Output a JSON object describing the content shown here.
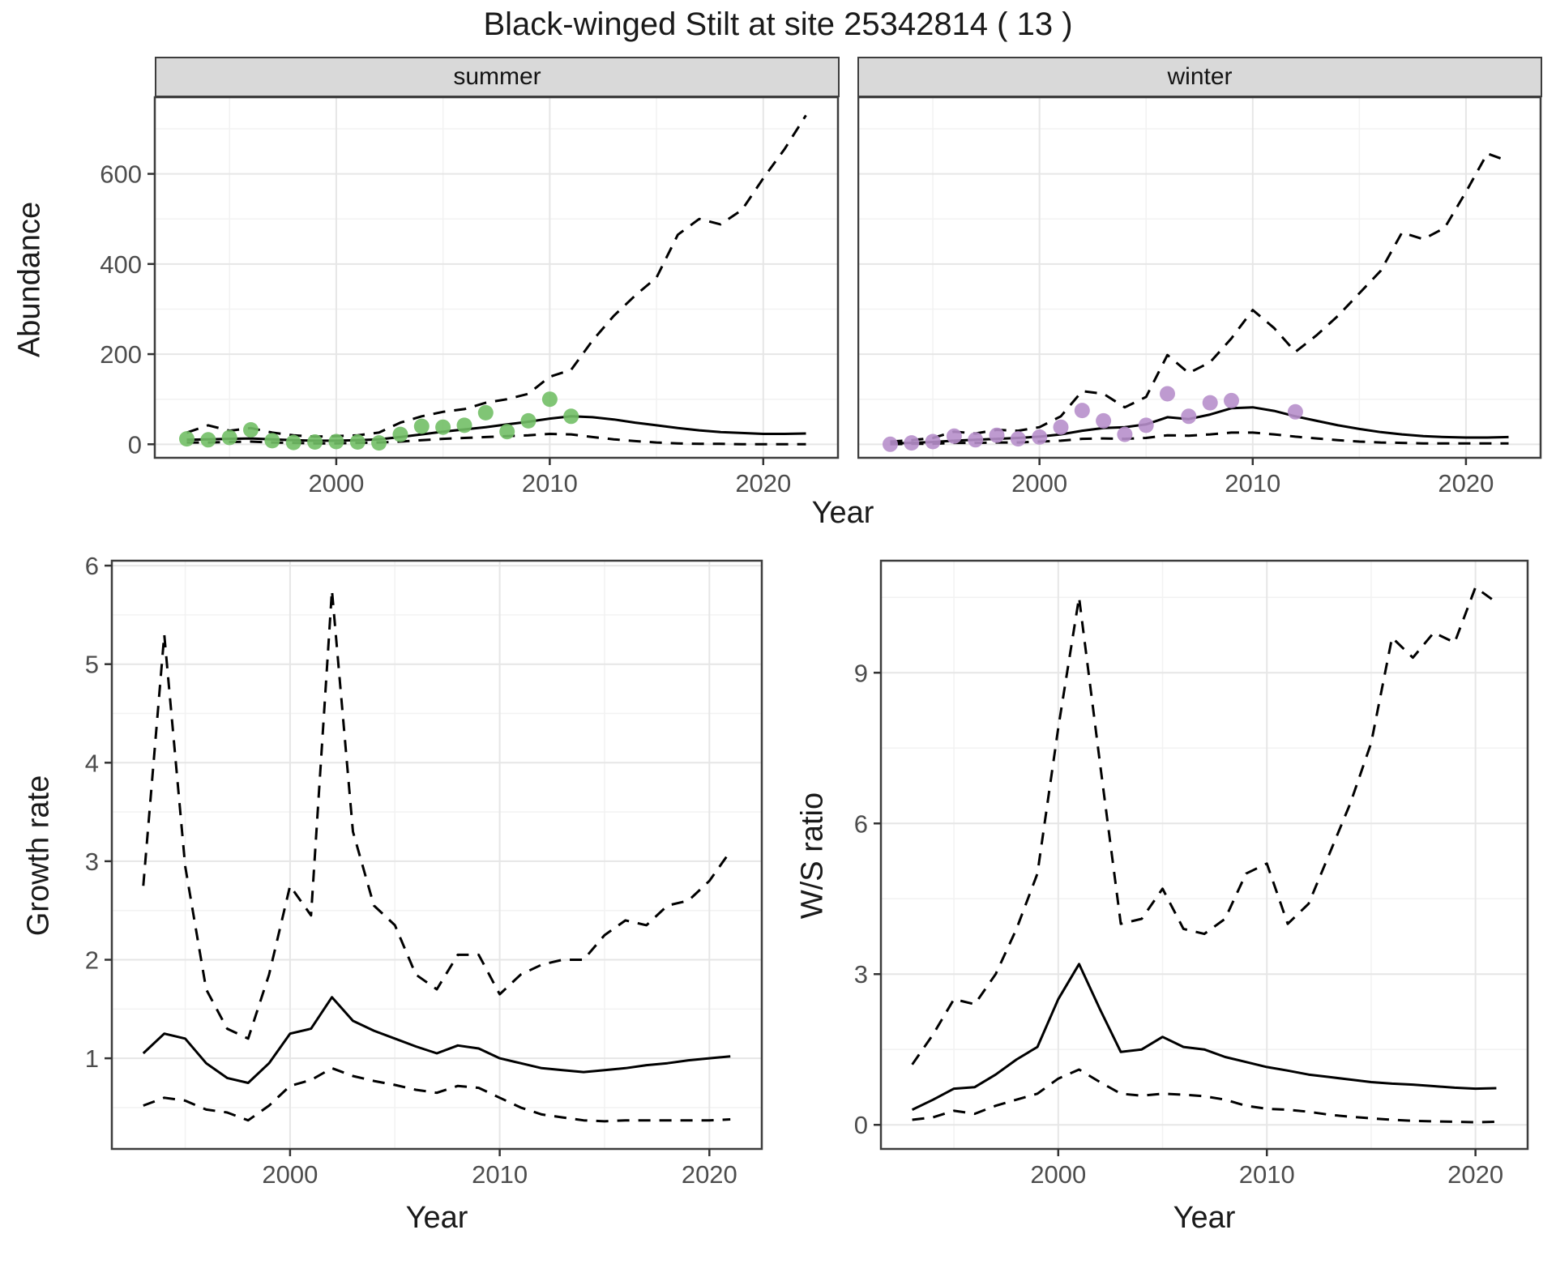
{
  "title": "Black-winged Stilt at site 25342814 ( 13 )",
  "colors": {
    "summer_points": "#72bf66",
    "winter_points": "#b78fcb",
    "fit_line": "#000000",
    "strip_bg": "#d9d9d9",
    "grid_major": "#e6e6e6",
    "tick_text": "#4d4d4d"
  },
  "chart_data": [
    {
      "id": "abundance_summer",
      "type": "scatter+line",
      "facet_label": "summer",
      "xlabel": "Year",
      "ylabel": "Abundance",
      "xlim": [
        1991.5,
        2023.5
      ],
      "ylim": [
        -30,
        770
      ],
      "xticks": [
        2000,
        2010,
        2020
      ],
      "yticks": [
        0,
        200,
        400,
        600
      ],
      "x": [
        1993,
        1994,
        1995,
        1996,
        1997,
        1998,
        1999,
        2000,
        2001,
        2002,
        2003,
        2004,
        2005,
        2006,
        2007,
        2008,
        2009,
        2010,
        2011,
        2012,
        2013,
        2014,
        2015,
        2016,
        2017,
        2018,
        2019,
        2020,
        2021,
        2022
      ],
      "series": [
        {
          "name": "upper-ci",
          "kind": "line",
          "dash": true,
          "color": "#000000",
          "y": [
            26,
            42,
            30,
            36,
            26,
            20,
            17,
            18,
            20,
            26,
            48,
            62,
            72,
            78,
            92,
            100,
            112,
            150,
            165,
            230,
            285,
            330,
            370,
            465,
            500,
            488,
            520,
            590,
            655,
            730
          ]
        },
        {
          "name": "lower-ci",
          "kind": "line",
          "dash": true,
          "color": "#000000",
          "y": [
            4,
            4,
            5,
            6,
            4,
            3,
            2,
            2,
            3,
            4,
            6,
            9,
            12,
            14,
            16,
            18,
            20,
            23,
            22,
            16,
            11,
            7,
            4,
            2,
            1,
            1,
            0,
            0,
            0,
            0
          ]
        },
        {
          "name": "fit",
          "kind": "line",
          "dash": false,
          "color": "#000000",
          "y": [
            10,
            11,
            12,
            13,
            11,
            9,
            8,
            8,
            9,
            11,
            16,
            22,
            28,
            33,
            38,
            44,
            50,
            57,
            62,
            60,
            55,
            48,
            42,
            36,
            31,
            27,
            25,
            23,
            23,
            24
          ]
        },
        {
          "name": "observed-counts",
          "kind": "points",
          "color": "#72bf66",
          "x": [
            1993,
            1994,
            1995,
            1996,
            1997,
            1998,
            1999,
            2000,
            2001,
            2002,
            2003,
            2004,
            2005,
            2006,
            2007,
            2008,
            2009,
            2010,
            2011
          ],
          "y": [
            12,
            10,
            15,
            32,
            8,
            4,
            5,
            6,
            5,
            3,
            22,
            40,
            38,
            42,
            70,
            28,
            52,
            100,
            62
          ]
        }
      ]
    },
    {
      "id": "abundance_winter",
      "type": "scatter+line",
      "facet_label": "winter",
      "xlabel": "Year",
      "ylabel": "Abundance",
      "xlim": [
        1991.5,
        2023.5
      ],
      "ylim": [
        -30,
        770
      ],
      "xticks": [
        2000,
        2010,
        2020
      ],
      "yticks": [
        0,
        200,
        400,
        600
      ],
      "x": [
        1993,
        1994,
        1995,
        1996,
        1997,
        1998,
        1999,
        2000,
        2001,
        2002,
        2003,
        2004,
        2005,
        2006,
        2007,
        2008,
        2009,
        2010,
        2011,
        2012,
        2013,
        2014,
        2015,
        2016,
        2017,
        2018,
        2019,
        2020,
        2021,
        2022
      ],
      "series": [
        {
          "name": "upper-ci",
          "kind": "line",
          "dash": true,
          "color": "#000000",
          "y": [
            6,
            9,
            14,
            28,
            24,
            32,
            30,
            38,
            62,
            118,
            112,
            82,
            105,
            198,
            158,
            182,
            235,
            298,
            258,
            205,
            242,
            285,
            335,
            385,
            470,
            455,
            480,
            560,
            645,
            628
          ]
        },
        {
          "name": "lower-ci",
          "kind": "line",
          "dash": true,
          "color": "#000000",
          "y": [
            0,
            1,
            1,
            3,
            3,
            4,
            4,
            6,
            8,
            12,
            13,
            12,
            14,
            20,
            19,
            22,
            26,
            26,
            22,
            17,
            13,
            9,
            6,
            4,
            3,
            2,
            2,
            2,
            2,
            2
          ]
        },
        {
          "name": "fit",
          "kind": "line",
          "dash": false,
          "color": "#000000",
          "y": [
            2,
            3,
            5,
            8,
            10,
            12,
            14,
            17,
            22,
            30,
            36,
            38,
            44,
            60,
            56,
            66,
            80,
            82,
            74,
            62,
            52,
            42,
            34,
            27,
            22,
            18,
            16,
            15,
            15,
            16
          ]
        },
        {
          "name": "observed-counts",
          "kind": "points",
          "color": "#b78fcb",
          "x": [
            1993,
            1994,
            1995,
            1996,
            1997,
            1998,
            1999,
            2000,
            2001,
            2002,
            2003,
            2004,
            2005,
            2006,
            2007,
            2008,
            2009,
            2012
          ],
          "y": [
            0,
            3,
            6,
            18,
            10,
            20,
            12,
            16,
            38,
            75,
            52,
            22,
            42,
            112,
            62,
            92,
            97,
            72
          ]
        }
      ]
    },
    {
      "id": "growth_rate",
      "type": "line",
      "xlabel": "Year",
      "ylabel": "Growth rate",
      "xlim": [
        1991.5,
        2022.5
      ],
      "ylim": [
        0.08,
        6.05
      ],
      "xticks": [
        2000,
        2010,
        2020
      ],
      "yticks": [
        1,
        2,
        3,
        4,
        5,
        6
      ],
      "x": [
        1993,
        1994,
        1995,
        1996,
        1997,
        1998,
        1999,
        2000,
        2001,
        2002,
        2003,
        2004,
        2005,
        2006,
        2007,
        2008,
        2009,
        2010,
        2011,
        2012,
        2013,
        2014,
        2015,
        2016,
        2017,
        2018,
        2019,
        2020,
        2021
      ],
      "series": [
        {
          "name": "upper-ci",
          "kind": "line",
          "dash": true,
          "color": "#000000",
          "y": [
            2.75,
            5.3,
            2.95,
            1.7,
            1.3,
            1.2,
            1.85,
            2.75,
            2.45,
            5.75,
            3.3,
            2.55,
            2.35,
            1.85,
            1.7,
            2.05,
            2.05,
            1.65,
            1.85,
            1.95,
            2.0,
            2.0,
            2.25,
            2.4,
            2.35,
            2.55,
            2.6,
            2.8,
            3.1
          ]
        },
        {
          "name": "lower-ci",
          "kind": "line",
          "dash": true,
          "color": "#000000",
          "y": [
            0.52,
            0.6,
            0.57,
            0.48,
            0.45,
            0.37,
            0.52,
            0.72,
            0.78,
            0.9,
            0.82,
            0.77,
            0.73,
            0.68,
            0.65,
            0.72,
            0.7,
            0.6,
            0.5,
            0.43,
            0.4,
            0.37,
            0.36,
            0.37,
            0.37,
            0.37,
            0.37,
            0.37,
            0.38
          ]
        },
        {
          "name": "fit",
          "kind": "line",
          "dash": false,
          "color": "#000000",
          "y": [
            1.05,
            1.25,
            1.2,
            0.95,
            0.8,
            0.75,
            0.95,
            1.25,
            1.3,
            1.62,
            1.38,
            1.28,
            1.2,
            1.12,
            1.05,
            1.13,
            1.1,
            1.0,
            0.95,
            0.9,
            0.88,
            0.86,
            0.88,
            0.9,
            0.93,
            0.95,
            0.98,
            1.0,
            1.02
          ]
        }
      ]
    },
    {
      "id": "ws_ratio",
      "type": "line",
      "xlabel": "Year",
      "ylabel": "W/S ratio",
      "xlim": [
        1991.5,
        2022.5
      ],
      "ylim": [
        -0.48,
        11.23
      ],
      "xticks": [
        2000,
        2010,
        2020
      ],
      "yticks": [
        0,
        3,
        6,
        9
      ],
      "x": [
        1993,
        1994,
        1995,
        1996,
        1997,
        1998,
        1999,
        2000,
        2001,
        2002,
        2003,
        2004,
        2005,
        2006,
        2007,
        2008,
        2009,
        2010,
        2011,
        2012,
        2013,
        2014,
        2015,
        2016,
        2017,
        2018,
        2019,
        2020,
        2021
      ],
      "series": [
        {
          "name": "upper-ci",
          "kind": "line",
          "dash": true,
          "color": "#000000",
          "y": [
            1.2,
            1.8,
            2.5,
            2.4,
            3.0,
            3.9,
            5.0,
            7.9,
            10.5,
            7.2,
            4.0,
            4.1,
            4.7,
            3.9,
            3.8,
            4.1,
            5.0,
            5.2,
            4.0,
            4.4,
            5.4,
            6.4,
            7.6,
            9.7,
            9.3,
            9.8,
            9.6,
            10.7,
            10.4
          ]
        },
        {
          "name": "lower-ci",
          "kind": "line",
          "dash": true,
          "color": "#000000",
          "y": [
            0.1,
            0.15,
            0.28,
            0.22,
            0.38,
            0.5,
            0.62,
            0.92,
            1.1,
            0.85,
            0.62,
            0.58,
            0.62,
            0.6,
            0.57,
            0.5,
            0.38,
            0.32,
            0.3,
            0.26,
            0.2,
            0.16,
            0.13,
            0.1,
            0.08,
            0.07,
            0.06,
            0.05,
            0.06
          ]
        },
        {
          "name": "fit",
          "kind": "line",
          "dash": false,
          "color": "#000000",
          "y": [
            0.3,
            0.5,
            0.72,
            0.75,
            1.0,
            1.3,
            1.55,
            2.5,
            3.2,
            2.3,
            1.45,
            1.5,
            1.75,
            1.55,
            1.5,
            1.35,
            1.25,
            1.15,
            1.08,
            1.0,
            0.95,
            0.9,
            0.85,
            0.82,
            0.8,
            0.77,
            0.74,
            0.72,
            0.73
          ]
        }
      ]
    }
  ]
}
